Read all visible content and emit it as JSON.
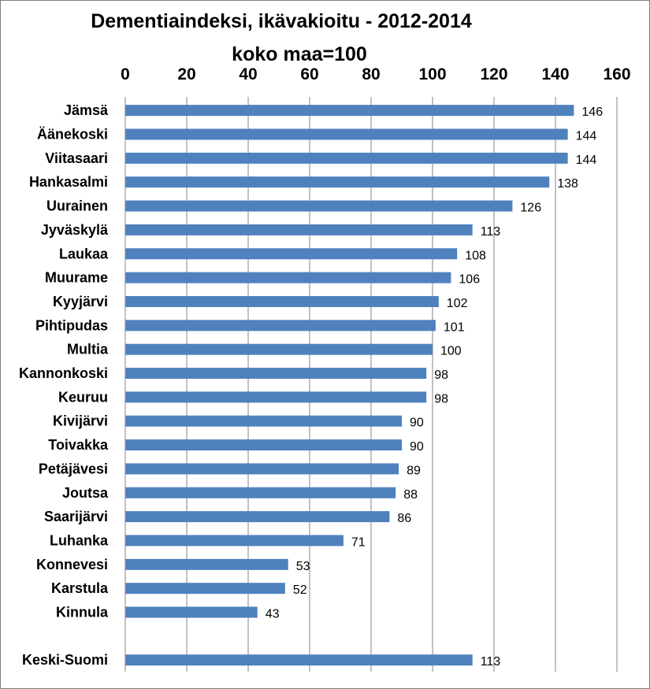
{
  "chart_data": {
    "type": "bar",
    "orientation": "horizontal",
    "title": "Dementiaindeksi, ikävakioitu - 2012-2014",
    "subtitle": "koko maa=100",
    "xlim": [
      0,
      160
    ],
    "ticks": [
      0,
      20,
      40,
      60,
      80,
      100,
      120,
      140,
      160
    ],
    "x_axis_position": "top",
    "gridlines": "vertical",
    "legend": "none",
    "bar_color": "#4f81bd",
    "categories": [
      "Jämsä",
      "Äänekoski",
      "Viitasaari",
      "Hankasalmi",
      "Uurainen",
      "Jyväskylä",
      "Laukaa",
      "Muurame",
      "Kyyjärvi",
      "Pihtipudas",
      "Multia",
      "Kannonkoski",
      "Keuruu",
      "Kivijärvi",
      "Toivakka",
      "Petäjävesi",
      "Joutsa",
      "Saarijärvi",
      "Luhanka",
      "Konnevesi",
      "Karstula",
      "Kinnula",
      "",
      "Keski-Suomi"
    ],
    "values": [
      146,
      144,
      144,
      138,
      126,
      113,
      108,
      106,
      102,
      101,
      100,
      98,
      98,
      90,
      90,
      89,
      88,
      86,
      71,
      53,
      52,
      43,
      null,
      113
    ]
  }
}
